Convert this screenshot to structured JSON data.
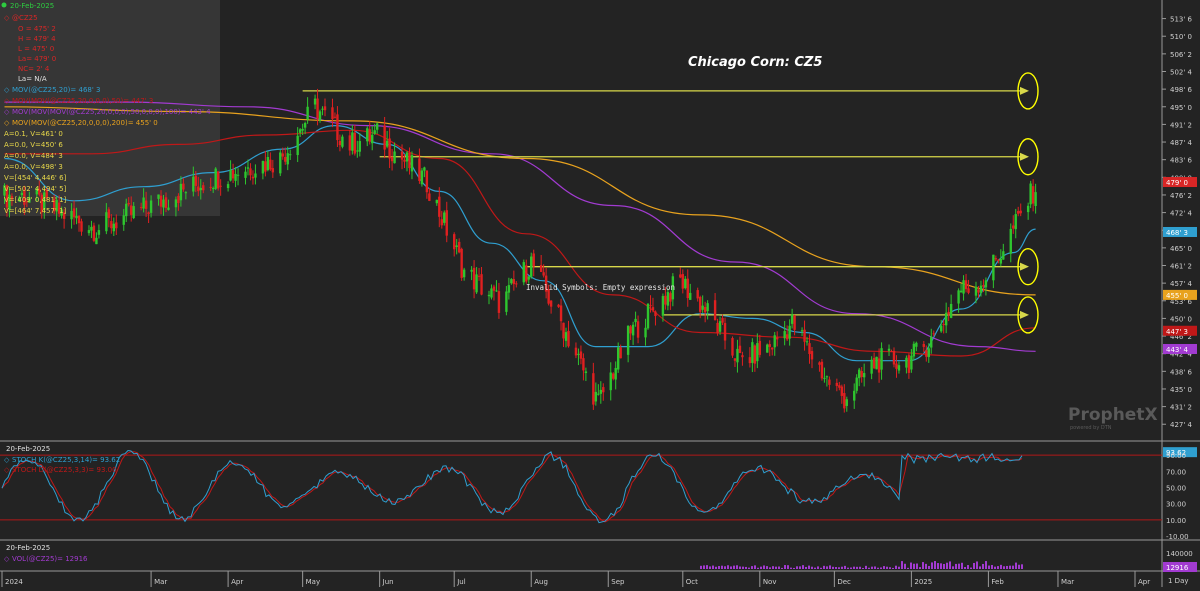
{
  "chart_data": {
    "type": "candlestick",
    "title": "Chicago Corn: CZ5",
    "note": "Invalid Symbols: Empty expression",
    "watermark": "ProphetX",
    "watermark_sub": "powered by DTN",
    "price_axis": {
      "ticks": [
        "513' 6",
        "510' 0",
        "506' 2",
        "502' 4",
        "498' 6",
        "495' 0",
        "491' 2",
        "487' 4",
        "483' 6",
        "480' 0",
        "476' 2",
        "472' 4",
        "468' 6",
        "465' 0",
        "461' 2",
        "457' 4",
        "453' 6",
        "450' 0",
        "446' 2",
        "442' 4",
        "438' 6",
        "435' 0",
        "431' 2",
        "427' 4"
      ],
      "ylim": [
        425,
        516
      ],
      "labels": [
        {
          "text": "479' 0",
          "value": 479.0,
          "color": "#d92626"
        },
        {
          "text": "468' 3",
          "value": 468.375,
          "color": "#2f9fd0"
        },
        {
          "text": "455' 0",
          "value": 455.0,
          "color": "#e8a21e"
        },
        {
          "text": "447' 3",
          "value": 447.375,
          "color": "#c01818"
        },
        {
          "text": "443' 4",
          "value": 443.5,
          "color": "#a23bd1"
        }
      ]
    },
    "x_axis": {
      "labels": [
        "2024",
        "Mar",
        "Apr",
        "May",
        "Jun",
        "Jul",
        "Aug",
        "Sep",
        "Oct",
        "Nov",
        "Dec",
        "2025",
        "Feb",
        "Mar",
        "Apr"
      ],
      "interval": "1 Day"
    },
    "price_panel_legend": {
      "date": "20-Feb-2025",
      "symbol": "@CZ25",
      "ohlc": [
        "O = 475' 2",
        "H = 479' 4",
        "L = 475' 0",
        "La= 479' 0",
        "NC= 2' 4",
        "La= N/A"
      ],
      "moving_averages": [
        {
          "text": "MOV(@CZ25,20)= 468' 3",
          "color": "#2f9fd0"
        },
        {
          "text": "MOV(MOV(@CZ25,20,0,0,0),50)= 447' 3",
          "color": "#c01818"
        },
        {
          "text": "MOV(MOV(MOV(@CZ25,20,0,0,0),50,0,0,0),100)= 443' 4",
          "color": "#a23bd1"
        },
        {
          "text": "MOV(MOV(@CZ25,20,0,0,0),200)= 455' 0",
          "color": "#e8a21e"
        }
      ],
      "annotations": [
        "A=0.1, V=461' 0",
        "A=0.0, V=450' 6",
        "A=0.0, V=484' 3",
        "A=0.0, V=498' 3",
        "V=[454' 4,446' 6]",
        "V=[502' 4,494' 5]",
        "V=[409' 0,481' 1]",
        "V=[464' 7,457' 1]"
      ]
    },
    "horizontal_lines": [
      {
        "value": 498.375,
        "from": "2024-05-01",
        "to": "2025-02-20"
      },
      {
        "value": 484.375,
        "from": "2024-06-01",
        "to": "2025-02-20"
      },
      {
        "value": 461.0,
        "from": "2024-07-29",
        "to": "2025-02-20"
      },
      {
        "value": 450.75,
        "from": "2024-09-23",
        "to": "2025-02-20"
      }
    ],
    "series": [
      {
        "name": "MOV(@CZ25,20)",
        "color": "#2f9fd0",
        "x": [
          "2024-01-02",
          "2024-01-30",
          "2024-02-27",
          "2024-03-26",
          "2024-04-23",
          "2024-05-14",
          "2024-06-04",
          "2024-06-25",
          "2024-07-16",
          "2024-08-06",
          "2024-08-27",
          "2024-09-17",
          "2024-10-08",
          "2024-10-29",
          "2024-11-19",
          "2024-12-10",
          "2024-12-31",
          "2025-01-21",
          "2025-02-11",
          "2025-02-20"
        ],
        "y": [
          484,
          475,
          478,
          481,
          486,
          491,
          487,
          477,
          466,
          458,
          444,
          444,
          451,
          450,
          447,
          441,
          441,
          452,
          464,
          469
        ]
      },
      {
        "name": "MOV(MOV(@CZ25,20,0,0,0),50)",
        "color": "#c01818",
        "x": [
          "2024-01-02",
          "2024-02-06",
          "2024-03-12",
          "2024-04-16",
          "2024-05-21",
          "2024-06-25",
          "2024-07-30",
          "2024-09-03",
          "2024-10-08",
          "2024-11-12",
          "2024-12-17",
          "2025-01-21",
          "2025-02-20"
        ],
        "y": [
          485,
          485,
          487,
          489,
          490,
          484,
          468,
          455,
          447,
          446,
          443,
          442,
          448
        ]
      },
      {
        "name": "MOV(MOV(MOV(@CZ25,20,0,0,0),50,0,0,0),100)",
        "color": "#a23bd1",
        "x": [
          "2024-01-02",
          "2024-02-20",
          "2024-04-09",
          "2024-05-28",
          "2024-07-16",
          "2024-09-03",
          "2024-10-22",
          "2024-12-10",
          "2025-01-28",
          "2025-02-20"
        ],
        "y": [
          496,
          496,
          495,
          491,
          485,
          474,
          462,
          451,
          444,
          443
        ]
      },
      {
        "name": "MOV(MOV(@CZ25,20,0,0,0),200)",
        "color": "#e8a21e",
        "x": [
          "2024-01-02",
          "2024-03-12",
          "2024-05-21",
          "2024-07-30",
          "2024-10-08",
          "2024-12-17",
          "2025-02-20"
        ],
        "y": [
          495,
          494,
          492,
          484,
          472,
          461,
          455
        ]
      }
    ],
    "stochastic": {
      "date": "20-Feb-2025",
      "k_label": "STOCH K(@CZ25,3,14)= 93.62",
      "d_label": "STOCH D(@CZ25,3,3)= 93.00",
      "k_color": "#2f9fd0",
      "d_color": "#c01818",
      "ticks": [
        "93.62",
        "90.00",
        "70.00",
        "50.00",
        "30.00",
        "10.00",
        "-10.00"
      ],
      "ylim": [
        -10,
        100
      ],
      "levels": [
        90,
        10
      ]
    },
    "volume": {
      "date": "20-Feb-2025",
      "label": "VOL(@CZ25)= 12916",
      "color": "#a23bd1",
      "ticks": [
        "140000",
        "12916"
      ]
    }
  }
}
